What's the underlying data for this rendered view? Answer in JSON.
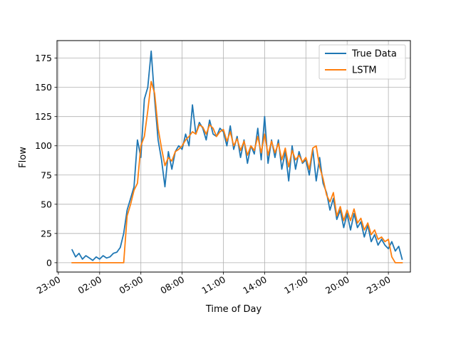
{
  "chart_data": {
    "type": "line",
    "xlabel": "Time of Day",
    "ylabel": "Flow",
    "grid": true,
    "legend_position": "top-right",
    "xlim": [
      -0.1,
      25.6
    ],
    "ylim": [
      -8,
      190
    ],
    "x_ticks": [
      {
        "value": 0,
        "label": "23:00"
      },
      {
        "value": 3,
        "label": "02:00"
      },
      {
        "value": 6,
        "label": "05:00"
      },
      {
        "value": 9,
        "label": "08:00"
      },
      {
        "value": 12,
        "label": "11:00"
      },
      {
        "value": 15,
        "label": "14:00"
      },
      {
        "value": 18,
        "label": "17:00"
      },
      {
        "value": 21,
        "label": "20:00"
      },
      {
        "value": 24,
        "label": "23:00"
      }
    ],
    "y_ticks": [
      0,
      25,
      50,
      75,
      100,
      125,
      150,
      175
    ],
    "series": [
      {
        "name": "True Data",
        "color": "#1f77b4",
        "x": [
          1.0,
          1.25,
          1.5,
          1.75,
          2.0,
          2.25,
          2.5,
          2.75,
          3.0,
          3.25,
          3.5,
          3.75,
          4.0,
          4.25,
          4.5,
          4.75,
          5.0,
          5.25,
          5.5,
          5.75,
          6.0,
          6.25,
          6.5,
          6.75,
          7.0,
          7.25,
          7.5,
          7.75,
          8.0,
          8.25,
          8.5,
          8.75,
          9.0,
          9.25,
          9.5,
          9.75,
          10.0,
          10.25,
          10.5,
          10.75,
          11.0,
          11.25,
          11.5,
          11.75,
          12.0,
          12.25,
          12.5,
          12.75,
          13.0,
          13.25,
          13.5,
          13.75,
          14.0,
          14.25,
          14.5,
          14.75,
          15.0,
          15.25,
          15.5,
          15.75,
          16.0,
          16.25,
          16.5,
          16.75,
          17.0,
          17.25,
          17.5,
          17.75,
          18.0,
          18.25,
          18.5,
          18.75,
          19.0,
          19.25,
          19.5,
          19.75,
          20.0,
          20.25,
          20.5,
          20.75,
          21.0,
          21.25,
          21.5,
          21.75,
          22.0,
          22.25,
          22.5,
          22.75,
          23.0,
          23.25,
          23.5,
          23.75,
          24.0,
          24.25,
          24.5,
          24.75,
          25.0
        ],
        "values": [
          11,
          5,
          8,
          3,
          6,
          4,
          2,
          5,
          3,
          6,
          4,
          5,
          8,
          9,
          13,
          25,
          45,
          55,
          65,
          105,
          90,
          140,
          150,
          181,
          140,
          105,
          88,
          65,
          95,
          80,
          95,
          100,
          97,
          110,
          100,
          135,
          110,
          120,
          115,
          105,
          122,
          110,
          108,
          115,
          112,
          100,
          117,
          97,
          108,
          90,
          105,
          85,
          100,
          93,
          115,
          88,
          125,
          85,
          105,
          90,
          105,
          80,
          95,
          70,
          100,
          80,
          95,
          85,
          88,
          75,
          97,
          70,
          90,
          68,
          60,
          45,
          55,
          37,
          45,
          30,
          42,
          28,
          42,
          30,
          35,
          22,
          32,
          18,
          24,
          15,
          20,
          15,
          12,
          18,
          10,
          14,
          3
        ]
      },
      {
        "name": "LSTM",
        "color": "#ff7f0e",
        "x": [
          1.0,
          1.25,
          1.5,
          1.75,
          2.0,
          2.25,
          2.5,
          2.75,
          3.0,
          3.25,
          3.5,
          3.75,
          4.0,
          4.25,
          4.5,
          4.75,
          5.0,
          5.25,
          5.5,
          5.75,
          6.0,
          6.25,
          6.5,
          6.75,
          7.0,
          7.25,
          7.5,
          7.75,
          8.0,
          8.25,
          8.5,
          8.75,
          9.0,
          9.25,
          9.5,
          9.75,
          10.0,
          10.25,
          10.5,
          10.75,
          11.0,
          11.25,
          11.5,
          11.75,
          12.0,
          12.25,
          12.5,
          12.75,
          13.0,
          13.25,
          13.5,
          13.75,
          14.0,
          14.25,
          14.5,
          14.75,
          15.0,
          15.25,
          15.5,
          15.75,
          16.0,
          16.25,
          16.5,
          16.75,
          17.0,
          17.25,
          17.5,
          17.75,
          18.0,
          18.25,
          18.5,
          18.75,
          19.0,
          19.25,
          19.5,
          19.75,
          20.0,
          20.25,
          20.5,
          20.75,
          21.0,
          21.25,
          21.5,
          21.75,
          22.0,
          22.25,
          22.5,
          22.75,
          23.0,
          23.25,
          23.5,
          23.75,
          24.0,
          24.25,
          24.5,
          24.75,
          25.0
        ],
        "values": [
          0,
          0,
          0,
          0,
          0,
          0,
          0,
          0,
          0,
          0,
          0,
          0,
          0,
          0,
          0,
          0,
          40,
          50,
          62,
          68,
          100,
          108,
          130,
          155,
          145,
          115,
          98,
          83,
          90,
          87,
          95,
          97,
          100,
          105,
          108,
          112,
          110,
          118,
          116,
          110,
          118,
          115,
          108,
          112,
          114,
          104,
          112,
          100,
          106,
          96,
          104,
          92,
          100,
          96,
          108,
          94,
          110,
          92,
          104,
          94,
          102,
          88,
          98,
          82,
          96,
          88,
          92,
          86,
          90,
          80,
          98,
          100,
          82,
          72,
          58,
          52,
          60,
          40,
          48,
          36,
          45,
          36,
          46,
          34,
          38,
          28,
          34,
          24,
          28,
          20,
          22,
          18,
          20,
          5,
          0,
          0,
          0
        ]
      }
    ]
  }
}
